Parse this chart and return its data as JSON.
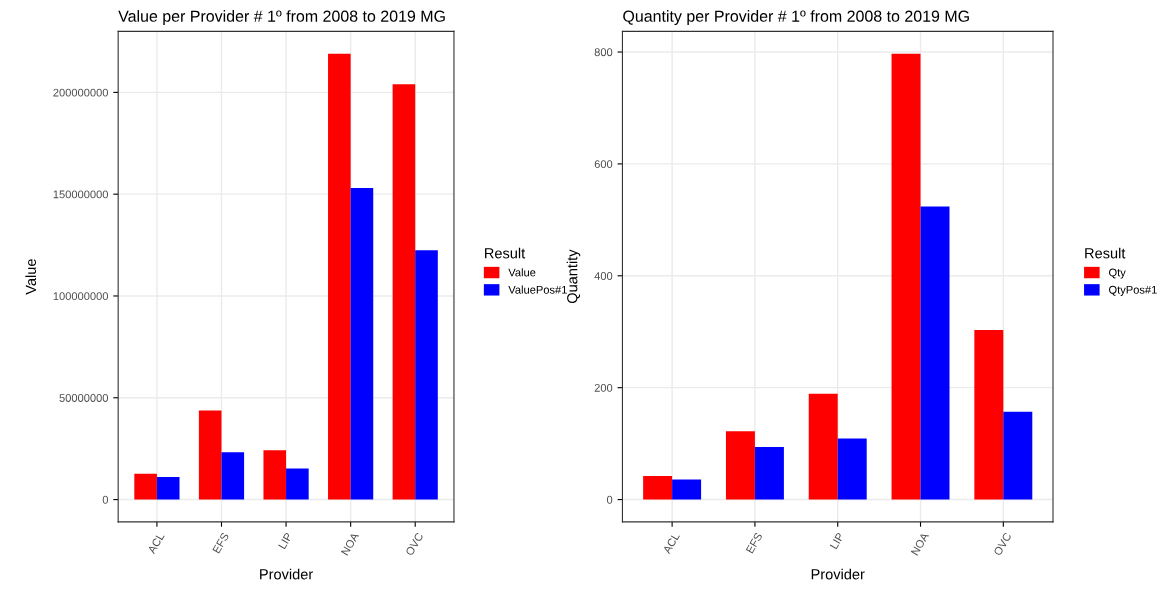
{
  "chart_data": [
    {
      "type": "bar",
      "title": "Value per Provider # 1º from 2008 to 2019 MG",
      "xlabel": "Provider",
      "ylabel": "Value",
      "legend_title": "Result",
      "categories": [
        "ACL",
        "EFS",
        "LIP",
        "NOA",
        "OVC"
      ],
      "series": [
        {
          "name": "Value",
          "color": "#ff0000",
          "values": [
            12700000,
            43800000,
            24200000,
            219000000,
            204000000
          ]
        },
        {
          "name": "ValuePos#1",
          "color": "#0000ff",
          "values": [
            11100000,
            23300000,
            15300000,
            153000000,
            122400000
          ]
        }
      ],
      "ylim": [
        -10950000,
        229950000
      ],
      "yticks": [
        0,
        50000000,
        100000000,
        150000000,
        200000000
      ],
      "grid": true,
      "legend": "right"
    },
    {
      "type": "bar",
      "title": "Quantity per Provider # 1º from 2008 to 2019 MG",
      "xlabel": "Provider",
      "ylabel": "Quantity",
      "legend_title": "Result",
      "categories": [
        "ACL",
        "EFS",
        "LIP",
        "NOA",
        "OVC"
      ],
      "series": [
        {
          "name": "Qty",
          "color": "#ff0000",
          "values": [
            42,
            122,
            189,
            797,
            303
          ]
        },
        {
          "name": "QtyPos#1",
          "color": "#0000ff",
          "values": [
            36,
            94,
            109,
            524,
            157
          ]
        }
      ],
      "ylim": [
        -39.85,
        836.85
      ],
      "yticks": [
        0,
        200,
        400,
        600,
        800
      ],
      "grid": true,
      "legend": "right"
    }
  ]
}
